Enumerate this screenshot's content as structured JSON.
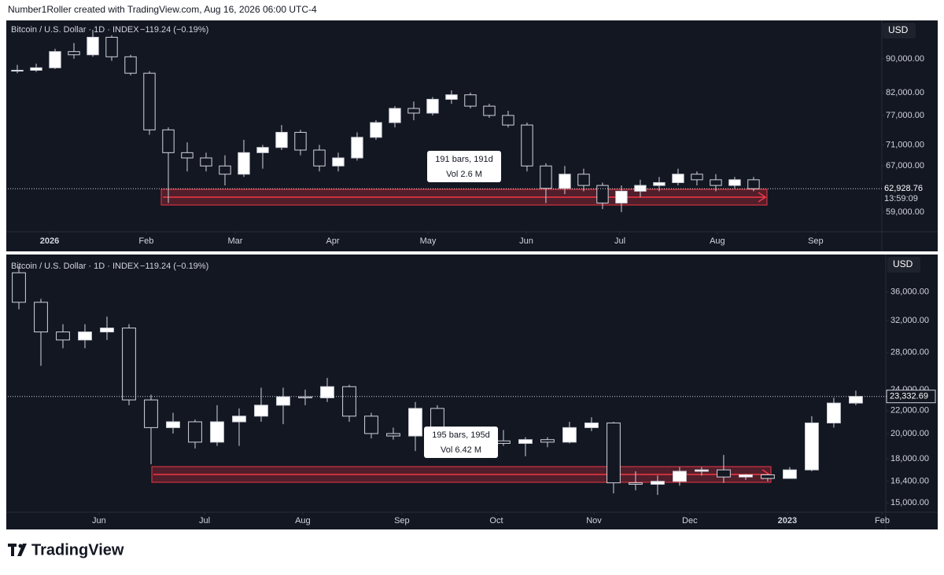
{
  "credit": "Number1Roller created with TradingView.com, Aug 16, 2026 06:00 UTC-4",
  "brand": "TradingView",
  "chart_data": [
    {
      "type": "candlestick",
      "symbol": "Bitcoin / U.S. Dollar · 1D · INDEX",
      "change": "−119.24 (−0.19%)",
      "currency": "USD",
      "log_scale": true,
      "up_color": "#ffffff",
      "down_color": "#131722",
      "wick_color": "#d1d4dc",
      "open": [
        87000,
        87200,
        87800,
        91800,
        91000,
        95500,
        90500,
        86500,
        74000,
        69500,
        68500,
        67000,
        65500,
        69500,
        70500,
        73500,
        70000,
        67000,
        68500,
        72500,
        75500,
        78500,
        77500,
        80500,
        81500,
        79000,
        77000,
        75000,
        67000,
        63000,
        65500,
        63500,
        60500,
        62500,
        63500,
        64000,
        65500,
        64500,
        63500,
        64500
      ],
      "high": [
        88500,
        88800,
        92500,
        94000,
        97500,
        96000,
        91000,
        87000,
        74500,
        71500,
        69500,
        69000,
        72000,
        71000,
        75000,
        74000,
        71000,
        69500,
        73500,
        76000,
        79000,
        80000,
        81000,
        82500,
        82000,
        79500,
        78000,
        75500,
        67500,
        67000,
        66500,
        64000,
        63500,
        64500,
        65000,
        66500,
        66000,
        65500,
        65000,
        65000
      ],
      "low": [
        86500,
        86800,
        87500,
        90000,
        90500,
        89500,
        86000,
        73000,
        60500,
        66000,
        66000,
        63500,
        65000,
        66500,
        70000,
        69000,
        66000,
        66000,
        68000,
        72000,
        74500,
        76000,
        77000,
        79500,
        78500,
        76500,
        74500,
        66000,
        60500,
        62000,
        62500,
        59500,
        59000,
        61500,
        62500,
        63500,
        63500,
        62500,
        63000,
        62500
      ],
      "close": [
        87200,
        87800,
        91800,
        91000,
        95500,
        90500,
        86500,
        74000,
        69500,
        68500,
        67000,
        65500,
        69500,
        70500,
        73500,
        70000,
        67000,
        68500,
        72500,
        75500,
        78500,
        77500,
        80500,
        81500,
        79000,
        77000,
        75000,
        67000,
        63000,
        65500,
        63500,
        60500,
        62500,
        63500,
        64000,
        65500,
        64500,
        63500,
        64500,
        62928.76
      ],
      "last_price": {
        "value": 62928.76,
        "label": "62,928.76"
      },
      "countdown": "13:59:09",
      "annotation": [
        "191 bars, 191d",
        "Vol 2.6 M"
      ],
      "xlim": [
        -0.5,
        45.67
      ],
      "xticks": [
        {
          "value": 1.71,
          "label": "2026"
        },
        {
          "value": 6.83,
          "label": "Feb"
        },
        {
          "value": 11.54,
          "label": "Mar"
        },
        {
          "value": 16.71,
          "label": "Apr"
        },
        {
          "value": 21.75,
          "label": "May"
        },
        {
          "value": 26.96,
          "label": "Jun"
        },
        {
          "value": 31.92,
          "label": "Jul"
        },
        {
          "value": 37.08,
          "label": "Aug"
        },
        {
          "value": 42.29,
          "label": "Sep"
        }
      ],
      "ylim": [
        55900,
        99600
      ],
      "yticks": [
        {
          "value": 59000,
          "label": "59,000.00"
        },
        {
          "value": 67000,
          "label": "67,000.00"
        },
        {
          "value": 71000,
          "label": "71,000.00"
        },
        {
          "value": 77000,
          "label": "77,000.00"
        },
        {
          "value": 82000,
          "label": "82,000.00"
        },
        {
          "value": 90000,
          "label": "90,000.00"
        }
      ]
    },
    {
      "type": "candlestick",
      "symbol": "Bitcoin / U.S. Dollar · 1D · INDEX",
      "change": "−119.24 (−0.19%)",
      "currency": "USD",
      "log_scale": true,
      "up_color": "#ffffff",
      "down_color": "#131722",
      "wick_color": "#d1d4dc",
      "open": [
        39000,
        34500,
        30500,
        29500,
        30500,
        31000,
        23000,
        20500,
        21000,
        19300,
        21000,
        21500,
        22500,
        23300,
        23200,
        24300,
        21500,
        20000,
        19800,
        22200,
        19500,
        18800,
        19400,
        19200,
        19500,
        19300,
        20500,
        20900,
        16300,
        16200,
        16400,
        17100,
        17200,
        16700,
        16850,
        16600,
        17200,
        20900,
        22700
      ],
      "high": [
        40000,
        35000,
        31500,
        31500,
        32500,
        31500,
        23500,
        21800,
        21200,
        22500,
        22200,
        24200,
        24200,
        24000,
        25200,
        24500,
        21800,
        20500,
        22800,
        22500,
        19800,
        20400,
        20300,
        19700,
        19700,
        21000,
        21400,
        21000,
        17100,
        16800,
        17400,
        17400,
        18300,
        16900,
        16900,
        17400,
        21500,
        23200,
        23900
      ],
      "low": [
        33500,
        26500,
        28500,
        28500,
        29500,
        22500,
        17600,
        20000,
        18800,
        19000,
        19000,
        21000,
        20800,
        22500,
        22800,
        21000,
        19600,
        19500,
        18600,
        18300,
        18200,
        18500,
        19000,
        18200,
        18900,
        19200,
        20200,
        15600,
        15800,
        15500,
        16100,
        16800,
        16300,
        16500,
        16400,
        16600,
        17100,
        20500,
        22500
      ],
      "close": [
        34500,
        30500,
        29500,
        30500,
        31000,
        23000,
        20500,
        21000,
        19300,
        21000,
        21500,
        22500,
        23300,
        23200,
        24300,
        21500,
        20000,
        19800,
        22200,
        19500,
        18800,
        19400,
        19200,
        19500,
        19300,
        20500,
        20900,
        16300,
        16200,
        16400,
        17100,
        17200,
        16700,
        16850,
        16600,
        17200,
        20900,
        22700,
        23332.69
      ],
      "last_price": {
        "value": 23332.69,
        "label": "23,332.69"
      },
      "annotation": [
        "195 bars, 195d",
        "Vol 6.42 M"
      ],
      "xlim": [
        -0.5,
        39.36
      ],
      "xticks": [
        {
          "value": 3.64,
          "label": "Jun"
        },
        {
          "value": 8.43,
          "label": "Jul"
        },
        {
          "value": 12.89,
          "label": "Aug"
        },
        {
          "value": 17.39,
          "label": "Sep"
        },
        {
          "value": 21.68,
          "label": "Oct"
        },
        {
          "value": 26.11,
          "label": "Nov"
        },
        {
          "value": 30.46,
          "label": "Dec"
        },
        {
          "value": 34.89,
          "label": "2023"
        },
        {
          "value": 39.2,
          "label": "Feb"
        }
      ],
      "ylim": [
        14430,
        41660
      ],
      "yticks": [
        {
          "value": 15000,
          "label": "15,000.00"
        },
        {
          "value": 16400,
          "label": "16,400.00"
        },
        {
          "value": 18000,
          "label": "18,000.00"
        },
        {
          "value": 20000,
          "label": "20,000.00"
        },
        {
          "value": 22000,
          "label": "22,000.00"
        },
        {
          "value": 24000,
          "label": "24,000.00"
        },
        {
          "value": 28000,
          "label": "28,000.00"
        },
        {
          "value": 32000,
          "label": "32,000.00"
        },
        {
          "value": 36000,
          "label": "36,000.00"
        }
      ]
    }
  ]
}
